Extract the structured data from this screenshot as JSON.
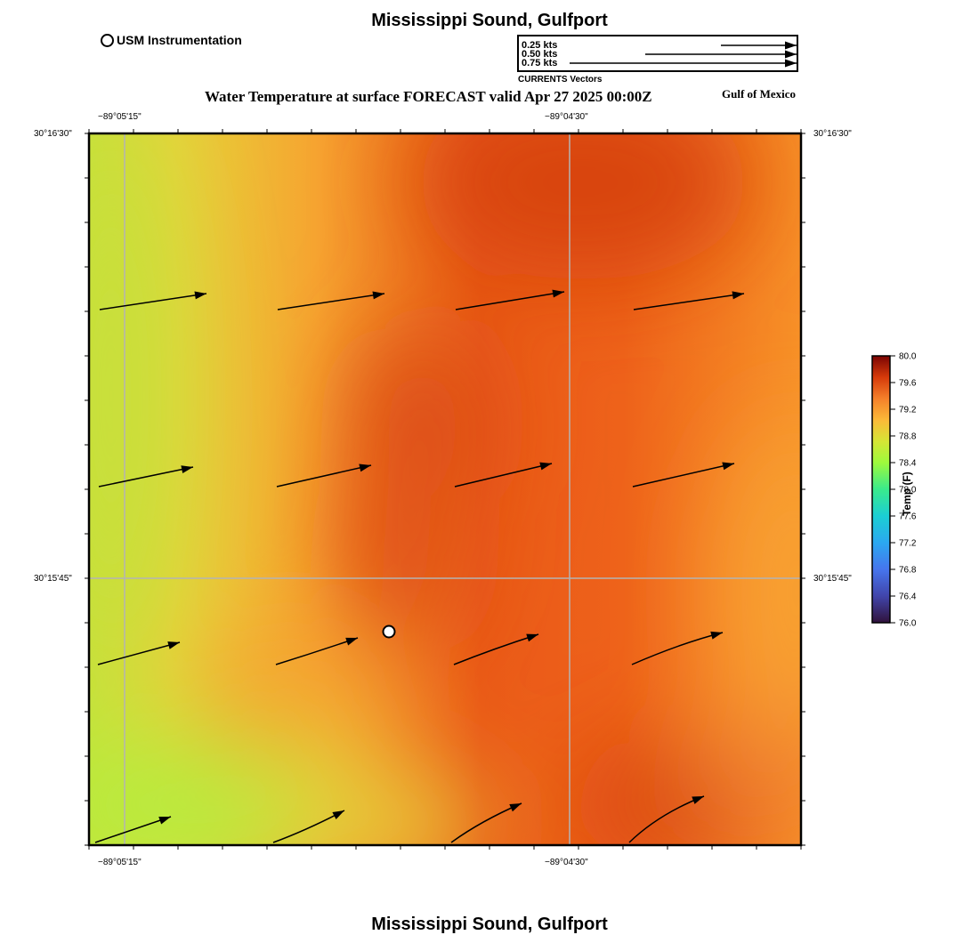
{
  "header": {
    "title": "Mississippi Sound, Gulfport",
    "subtitle": "Water Temperature at surface FORECAST valid Apr 27 2025 00:00Z",
    "region_label": "Gulf of Mexico",
    "footer_title": "Mississippi Sound, Gulfport"
  },
  "legend": {
    "marker_label": "USM Instrumentation"
  },
  "current_vectors": {
    "caption": "CURRENTS Vectors",
    "references": [
      {
        "label": "0.25 kts",
        "speed": 0.25
      },
      {
        "label": "0.50 kts",
        "speed": 0.5
      },
      {
        "label": "0.75 kts",
        "speed": 0.75
      }
    ]
  },
  "map": {
    "lon_ticks": [
      "−89°05'15\"",
      "−89°04'30\""
    ],
    "lat_ticks": [
      "30°16'30\"",
      "30°15'45\""
    ],
    "station": {
      "name": "USM Instrumentation"
    },
    "colors": {
      "yellow_green": "#b8ec3c",
      "yellow": "#e8d038",
      "orange": "#f8a030",
      "orange_red": "#f06a1c",
      "red_orange": "#d84410",
      "grid": "#b4b4b4"
    }
  },
  "colorbar": {
    "label": "Temp (F)",
    "ticks": [
      "80.0",
      "79.6",
      "79.2",
      "78.8",
      "78.4",
      "78.0",
      "77.6",
      "77.2",
      "76.8",
      "76.4",
      "76.0"
    ],
    "min": 76.0,
    "max": 80.0
  }
}
